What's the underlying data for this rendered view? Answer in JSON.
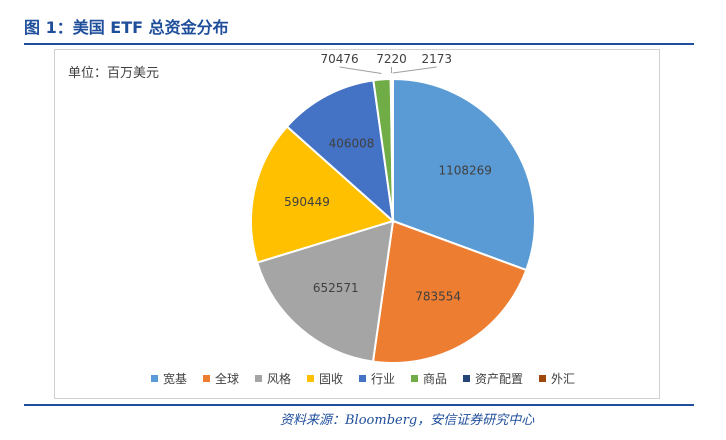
{
  "figure": {
    "title": "图 1：美国 ETF 总资金分布",
    "source": "资料来源：Bloomberg，安信证券研究中心"
  },
  "chart_data": {
    "type": "pie",
    "unit_label": "单位：百万美元",
    "slices": [
      {
        "label": "宽基",
        "value": 1108269,
        "color": "#5B9BD5"
      },
      {
        "label": "全球",
        "value": 783554,
        "color": "#ED7D31"
      },
      {
        "label": "风格",
        "value": 652571,
        "color": "#A5A5A5"
      },
      {
        "label": "固收",
        "value": 590449,
        "color": "#FFC000"
      },
      {
        "label": "行业",
        "value": 406008,
        "color": "#4472C4"
      },
      {
        "label": "商品",
        "value": 70476,
        "color": "#70AD47"
      },
      {
        "label": "资产配置",
        "value": 7220,
        "color": "#264478"
      },
      {
        "label": "外汇",
        "value": 2173,
        "color": "#9E480E"
      }
    ],
    "legend_position": "bottom"
  }
}
